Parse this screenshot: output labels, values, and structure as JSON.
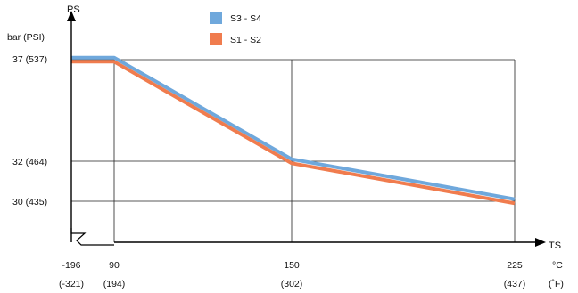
{
  "chart_data": {
    "type": "line",
    "y_axis": {
      "name": "PS",
      "unit": "bar (PSI)",
      "range_bar": [
        28,
        38
      ]
    },
    "x_axis": {
      "name": "TS",
      "unit_c": "°C",
      "unit_f": "(˚F)",
      "range_c": [
        -196,
        240
      ]
    },
    "grid": true,
    "legend_position": "top-center",
    "y_ticks": [
      {
        "bar": 37,
        "label": "37  (537)"
      },
      {
        "bar": 32,
        "label": "32  (464)"
      },
      {
        "bar": 30,
        "label": "30  (435)"
      }
    ],
    "x_ticks": [
      {
        "c": -196,
        "label_c": "-196",
        "label_f": "(-321)"
      },
      {
        "c": 90,
        "label_c": "90",
        "label_f": "(194)"
      },
      {
        "c": 150,
        "label_c": "150",
        "label_f": "(302)"
      },
      {
        "c": 225,
        "label_c": "225",
        "label_f": "(437)"
      }
    ],
    "series": [
      {
        "name": "S3 - S4",
        "color": "#6fa8dc",
        "points": [
          [
            -196,
            37.1
          ],
          [
            90,
            37.1
          ],
          [
            150,
            32.1
          ],
          [
            225,
            30.1
          ]
        ]
      },
      {
        "name": "S1 - S2",
        "color": "#f07c4e",
        "points": [
          [
            -196,
            36.9
          ],
          [
            90,
            36.9
          ],
          [
            150,
            31.9
          ],
          [
            225,
            29.9
          ]
        ]
      }
    ]
  }
}
